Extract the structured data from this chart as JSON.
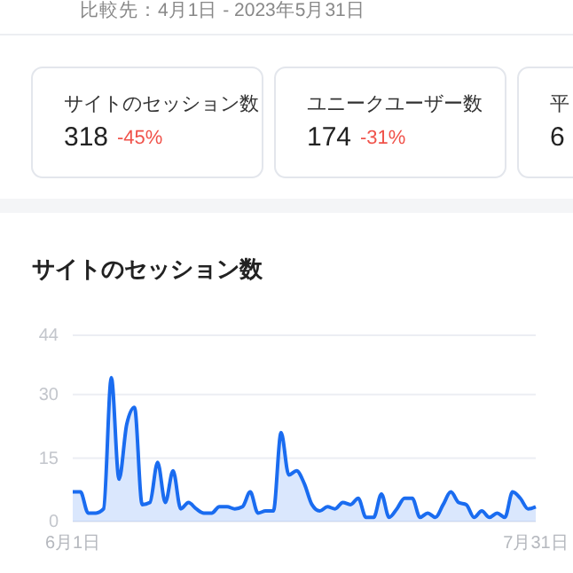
{
  "chart_data": [
    {
      "type": "other",
      "annotations": [
        "比較先：4月1日 - 2023年5月31日",
        "サイトのセッション数",
        "318",
        "-45%",
        "ユニークユーザー数",
        "174",
        "-31%",
        "平",
        "6"
      ]
    },
    {
      "type": "area",
      "title": "サイトのセッション数",
      "x": [
        "--06-01",
        "--06-02",
        "--06-03",
        "--06-04",
        "--06-05",
        "--06-06",
        "--06-07",
        "--06-08",
        "--06-09",
        "--06-10",
        "--06-11",
        "--06-12",
        "--06-13",
        "--06-14",
        "--06-15",
        "--06-16",
        "--06-17",
        "--06-18",
        "--06-19",
        "--06-20",
        "--06-21",
        "--06-22",
        "--06-23",
        "--06-24",
        "--06-25",
        "--06-26",
        "--06-27",
        "--06-28",
        "--06-29",
        "--06-30",
        "--07-01",
        "--07-02",
        "--07-03",
        "--07-04",
        "--07-05",
        "--07-06",
        "--07-07",
        "--07-08",
        "--07-09",
        "--07-10",
        "--07-11",
        "--07-12",
        "--07-13",
        "--07-14",
        "--07-15",
        "--07-16",
        "--07-17",
        "--07-18",
        "--07-19",
        "--07-20",
        "--07-21",
        "--07-22",
        "--07-23",
        "--07-24",
        "--07-25",
        "--07-26",
        "--07-27",
        "--07-28",
        "--07-29",
        "--07-30",
        "--07-31"
      ],
      "series": [
        {
          "color": "#1a6cf0",
          "values": [
            7,
            7,
            2,
            2,
            3,
            34,
            10,
            23,
            27,
            4,
            4.5,
            14,
            4.5,
            12,
            3,
            4.5,
            3,
            2,
            2,
            3.5,
            3.5,
            3,
            3.5,
            7,
            2,
            2.5,
            2.5,
            21,
            11,
            12,
            9,
            4,
            2.5,
            3.5,
            3,
            4.5,
            4,
            5.5,
            1,
            1,
            6.5,
            1,
            3,
            5.5,
            5.5,
            1,
            2,
            1,
            4,
            7,
            4.5,
            4,
            1,
            2.5,
            1,
            2,
            1,
            7,
            5.5,
            3,
            3.5
          ]
        }
      ],
      "xlim": [
        "--06-01",
        "--07-31"
      ],
      "xticks": [
        {
          "value": "--06-01",
          "label": "6月1日"
        },
        {
          "value": "--07-31",
          "label": "7月31日"
        }
      ],
      "ylim": [
        0,
        44
      ],
      "yticks": [
        0,
        15,
        30,
        44
      ],
      "grid": "y"
    }
  ]
}
